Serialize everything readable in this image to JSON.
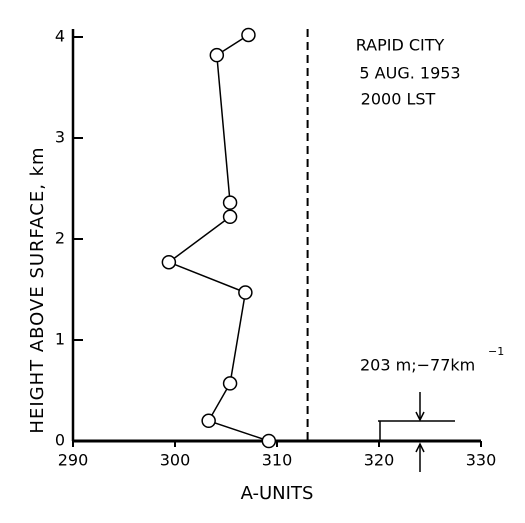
{
  "chart_data": {
    "type": "line",
    "x_label": "A-UNITS",
    "y_label": "HEIGHT ABOVE  SURFACE, km",
    "annotations": [
      "RAPID CITY",
      "5 AUG. 1953",
      "2000 LST"
    ],
    "marker_label": "203 m;−77km",
    "marker_label_sup": "−1",
    "series": [
      {
        "color": "#000000",
        "x": [
          307.2,
          304.1,
          305.4,
          305.4,
          299.4,
          306.9,
          305.4,
          303.3,
          309.2
        ],
        "values": [
          4.02,
          3.82,
          2.36,
          2.22,
          1.77,
          1.47,
          0.57,
          0.2,
          0.0
        ]
      }
    ],
    "reference_x": 313,
    "xlim": [
      290,
      330
    ],
    "xticks": [
      290,
      300,
      310,
      320,
      330
    ],
    "ylim": [
      0,
      4
    ],
    "yticks": [
      0,
      1,
      2,
      3,
      4
    ]
  }
}
